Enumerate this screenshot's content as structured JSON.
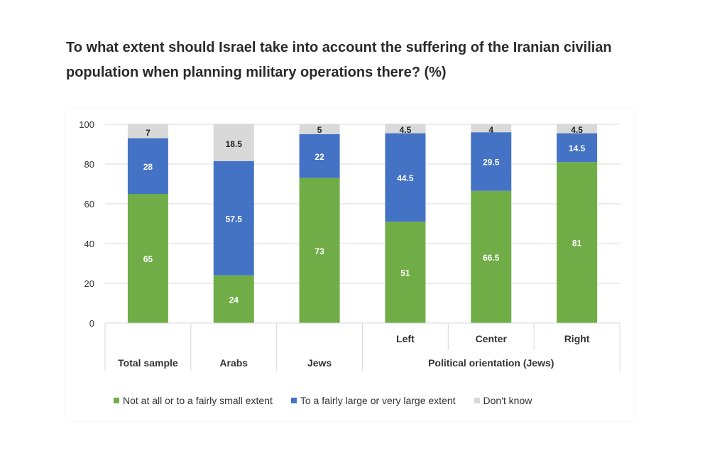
{
  "title_line1": "To what extent should Israel take into account the suffering of the Iranian civilian",
  "title_line2": "population when planning military operations there? (%)",
  "chart_data": {
    "type": "bar",
    "stacked": true,
    "categories": [
      "Total sample",
      "Arabs",
      "Jews",
      "Left",
      "Center",
      "Right"
    ],
    "group_label": "Political orientation (Jews)",
    "group_members": [
      "Left",
      "Center",
      "Right"
    ],
    "series": [
      {
        "name": "Not at all or to a fairly small extent",
        "color": "#70ad47",
        "values": [
          65,
          24,
          73,
          51,
          66.5,
          81
        ]
      },
      {
        "name": "To a fairly large or very large extent",
        "color": "#4472c4",
        "values": [
          28,
          57.5,
          22,
          44.5,
          29.5,
          14.5
        ]
      },
      {
        "name": "Don't know",
        "color": "#d9d9d9",
        "values": [
          7,
          18.5,
          5,
          4.5,
          4,
          4.5
        ]
      }
    ],
    "ylim": [
      0,
      100
    ],
    "yticks": [
      0,
      20,
      40,
      60,
      80,
      100
    ],
    "grid": true,
    "legend": "bottom"
  }
}
